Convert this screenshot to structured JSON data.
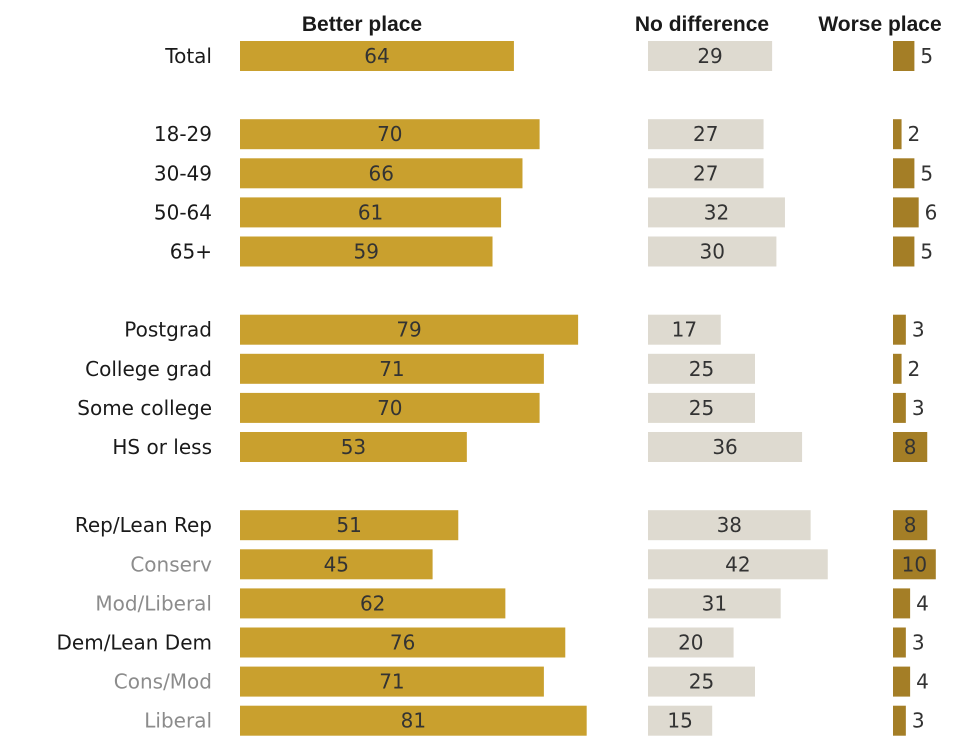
{
  "chart_data": {
    "type": "bar",
    "orientation": "horizontal",
    "stacked": false,
    "series": [
      {
        "name": "Better place",
        "color": "#c9a02e",
        "values": [
          64,
          70,
          66,
          61,
          59,
          79,
          71,
          70,
          53,
          51,
          45,
          62,
          76,
          71,
          81
        ]
      },
      {
        "name": "No difference",
        "color": "#dedad0",
        "values": [
          29,
          27,
          27,
          32,
          30,
          17,
          25,
          25,
          36,
          38,
          42,
          31,
          20,
          25,
          15
        ]
      },
      {
        "name": "Worse place",
        "color": "#a47e26",
        "values": [
          5,
          2,
          5,
          6,
          5,
          3,
          2,
          3,
          8,
          8,
          10,
          4,
          3,
          4,
          3
        ]
      }
    ],
    "categories": [
      {
        "label": "Total",
        "group": 0,
        "sub": false
      },
      {
        "label": "18-29",
        "group": 1,
        "sub": false
      },
      {
        "label": "30-49",
        "group": 1,
        "sub": false
      },
      {
        "label": "50-64",
        "group": 1,
        "sub": false
      },
      {
        "label": "65+",
        "group": 1,
        "sub": false
      },
      {
        "label": "Postgrad",
        "group": 2,
        "sub": false
      },
      {
        "label": "College grad",
        "group": 2,
        "sub": false
      },
      {
        "label": "Some college",
        "group": 2,
        "sub": false
      },
      {
        "label": "HS or less",
        "group": 2,
        "sub": false
      },
      {
        "label": "Rep/Lean Rep",
        "group": 3,
        "sub": false
      },
      {
        "label": "Conserv",
        "group": 3,
        "sub": true
      },
      {
        "label": "Mod/Liberal",
        "group": 3,
        "sub": true
      },
      {
        "label": "Dem/Lean Dem",
        "group": 3,
        "sub": false
      },
      {
        "label": "Cons/Mod",
        "group": 3,
        "sub": true
      },
      {
        "label": "Liberal",
        "group": 3,
        "sub": true
      }
    ],
    "title": "",
    "xlabel": "",
    "ylabel": "",
    "grid": false,
    "legend": "column headers at top"
  }
}
